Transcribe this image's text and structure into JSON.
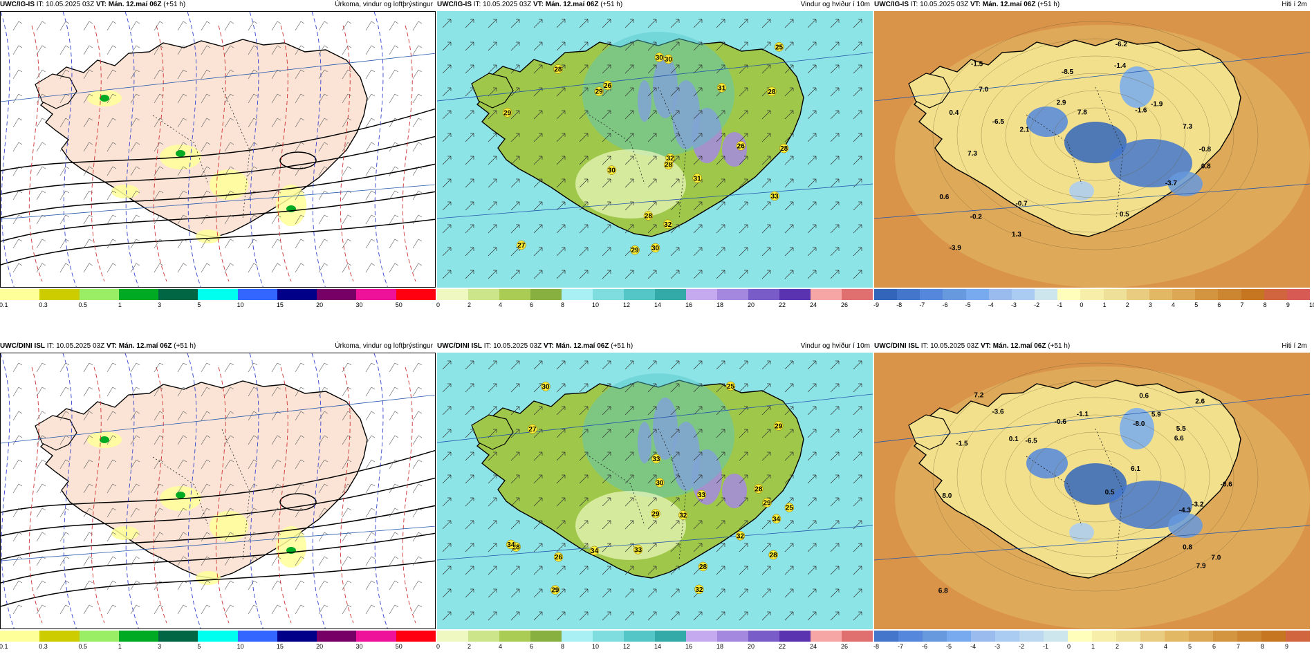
{
  "panels": [
    {
      "id": "p1",
      "model": "UWC/IG-IS",
      "it": "IT: 10.05.2025 03Z",
      "vt": "VT: Mán. 12.maí 06Z",
      "lead": "(+51 h)",
      "title": "Úrkoma, vindur og loftþrýstingur",
      "kind": "precip",
      "scale": {
        "colors": [
          "#ffff99",
          "#cccc00",
          "#99ee66",
          "#00aa22",
          "#006644",
          "#00ffee",
          "#3366ff",
          "#000088",
          "#770066",
          "#ee1199",
          "#ff0011"
        ],
        "ticks": [
          "0.1",
          "0.3",
          "0.5",
          "1",
          "3",
          "5",
          "10",
          "15",
          "20",
          "30",
          "50"
        ]
      },
      "labels": []
    },
    {
      "id": "p2",
      "model": "UWC/IG-IS",
      "it": "IT: 10.05.2025 03Z",
      "vt": "VT: Mán. 12.maí 06Z",
      "lead": "(+51 h)",
      "title": "Vindur og hviður í 10m",
      "kind": "wind",
      "scale": {
        "colors": [
          "#eef8c0",
          "#cce58a",
          "#aacc55",
          "#88b040",
          "#a8f0f4",
          "#7fdde0",
          "#55c6c8",
          "#33a9a8",
          "#c5aaf0",
          "#a488e0",
          "#7a5cc8",
          "#5a34b0",
          "#f7a6a6",
          "#e07070"
        ],
        "ticks": [
          "0",
          "2",
          "4",
          "6",
          "8",
          "10",
          "12",
          "14",
          "16",
          "18",
          "20",
          "22",
          "24",
          "26"
        ]
      },
      "labels": [
        "29",
        "27",
        "26",
        "29",
        "25",
        "30",
        "28",
        "32",
        "32",
        "30",
        "30",
        "28",
        "26",
        "28",
        "31",
        "31",
        "28",
        "29",
        "33",
        "28",
        "30"
      ]
    },
    {
      "id": "p3",
      "model": "UWC/IG-IS",
      "it": "IT: 10.05.2025 03Z",
      "vt": "VT: Mán. 12.maí 06Z",
      "lead": "(+51 h)",
      "title": "Hiti í 2m",
      "kind": "temp",
      "scale": {
        "colors": [
          "#3366bb",
          "#4477cc",
          "#5588dd",
          "#6699dd",
          "#77aaee",
          "#99bbee",
          "#aaccf3",
          "#cde6ee",
          "#ffffbb",
          "#f7eeaa",
          "#efe099",
          "#e9cc80",
          "#e2b865",
          "#dca855",
          "#d49540",
          "#cc8530",
          "#c67520",
          "#d06540",
          "#d85a55"
        ],
        "ticks": [
          "-9",
          "-8",
          "-7",
          "-6",
          "-5",
          "-4",
          "-3",
          "-2",
          "-1",
          "0",
          "1",
          "2",
          "3",
          "4",
          "5",
          "6",
          "7",
          "8",
          "9",
          "10"
        ]
      },
      "labels": [
        "1.3",
        "2.9",
        "2.1",
        "-0.8",
        "-1.4",
        "0.8",
        "-1.6",
        "7.3",
        "7.3",
        "0.4",
        "-0.7",
        "-1.9",
        "0.5",
        "-0.2",
        "-3.9",
        "-6.5",
        "7.8",
        "-8.5",
        "7.0",
        "0.6",
        "-1.5",
        "-6.2",
        "-3.7"
      ]
    },
    {
      "id": "p4",
      "model": "UWC/DINI ISL",
      "it": "IT: 10.05.2025 03Z",
      "vt": "VT: Mán. 12.maí 06Z",
      "lead": "(+51 h)",
      "title": "Úrkoma, vindur og loftþrýstingur",
      "kind": "precip",
      "scale": {
        "colors": [
          "#ffff99",
          "#cccc00",
          "#99ee66",
          "#00aa22",
          "#006644",
          "#00ffee",
          "#3366ff",
          "#000088",
          "#770066",
          "#ee1199",
          "#ff0011"
        ],
        "ticks": [
          "0.1",
          "0.3",
          "0.5",
          "1",
          "3",
          "5",
          "10",
          "15",
          "20",
          "30",
          "50"
        ]
      },
      "labels": []
    },
    {
      "id": "p5",
      "model": "UWC/DINI ISL",
      "it": "IT: 10.05.2025 03Z",
      "vt": "VT: Mán. 12.maí 06Z",
      "lead": "(+51 h)",
      "title": "Vindur og hviður í 10m",
      "kind": "wind",
      "scale": {
        "colors": [
          "#eef8c0",
          "#cce58a",
          "#aacc55",
          "#88b040",
          "#a8f0f4",
          "#7fdde0",
          "#55c6c8",
          "#33a9a8",
          "#c5aaf0",
          "#a488e0",
          "#7a5cc8",
          "#5a34b0",
          "#f7a6a6",
          "#e07070"
        ],
        "ticks": [
          "0",
          "2",
          "4",
          "6",
          "8",
          "10",
          "12",
          "14",
          "16",
          "18",
          "20",
          "22",
          "24",
          "26"
        ]
      },
      "labels": [
        "28",
        "30",
        "27",
        "32",
        "26",
        "29",
        "33",
        "34",
        "32",
        "25",
        "28",
        "33",
        "28",
        "29",
        "34",
        "28",
        "30",
        "33",
        "34",
        "29",
        "29",
        "32",
        "25"
      ]
    },
    {
      "id": "p6",
      "model": "UWC/DINI ISL",
      "it": "IT: 10.05.2025 03Z",
      "vt": "VT: Mán. 12.maí 06Z",
      "lead": "(+51 h)",
      "title": "Hiti í 2m",
      "kind": "temp",
      "scale": {
        "colors": [
          "#4477cc",
          "#5588dd",
          "#6699dd",
          "#77aaee",
          "#99bbee",
          "#aaccf3",
          "#bbd8f0",
          "#cde6ee",
          "#ffffbb",
          "#f7eeaa",
          "#efe099",
          "#e9cc80",
          "#e2b865",
          "#dca855",
          "#d49540",
          "#cc8530",
          "#c67520",
          "#d06540"
        ],
        "ticks": [
          "-8",
          "-7",
          "-6",
          "-5",
          "-4",
          "-3",
          "-2",
          "-1",
          "0",
          "1",
          "2",
          "3",
          "4",
          "5",
          "6",
          "7",
          "8",
          "9"
        ]
      },
      "labels": [
        "-0.6",
        "6.6",
        "8.0",
        "6.8",
        "5.5",
        "-1.5",
        "0.1",
        "7.2",
        "6.1",
        "-0.6",
        "5.9",
        "0.8",
        "0.6",
        "-3.2",
        "-1.1",
        "-4.3",
        "-6.5",
        "2.6",
        "-8.0",
        "7.0",
        "0.5",
        "7.9",
        "-3.6"
      ]
    }
  ]
}
